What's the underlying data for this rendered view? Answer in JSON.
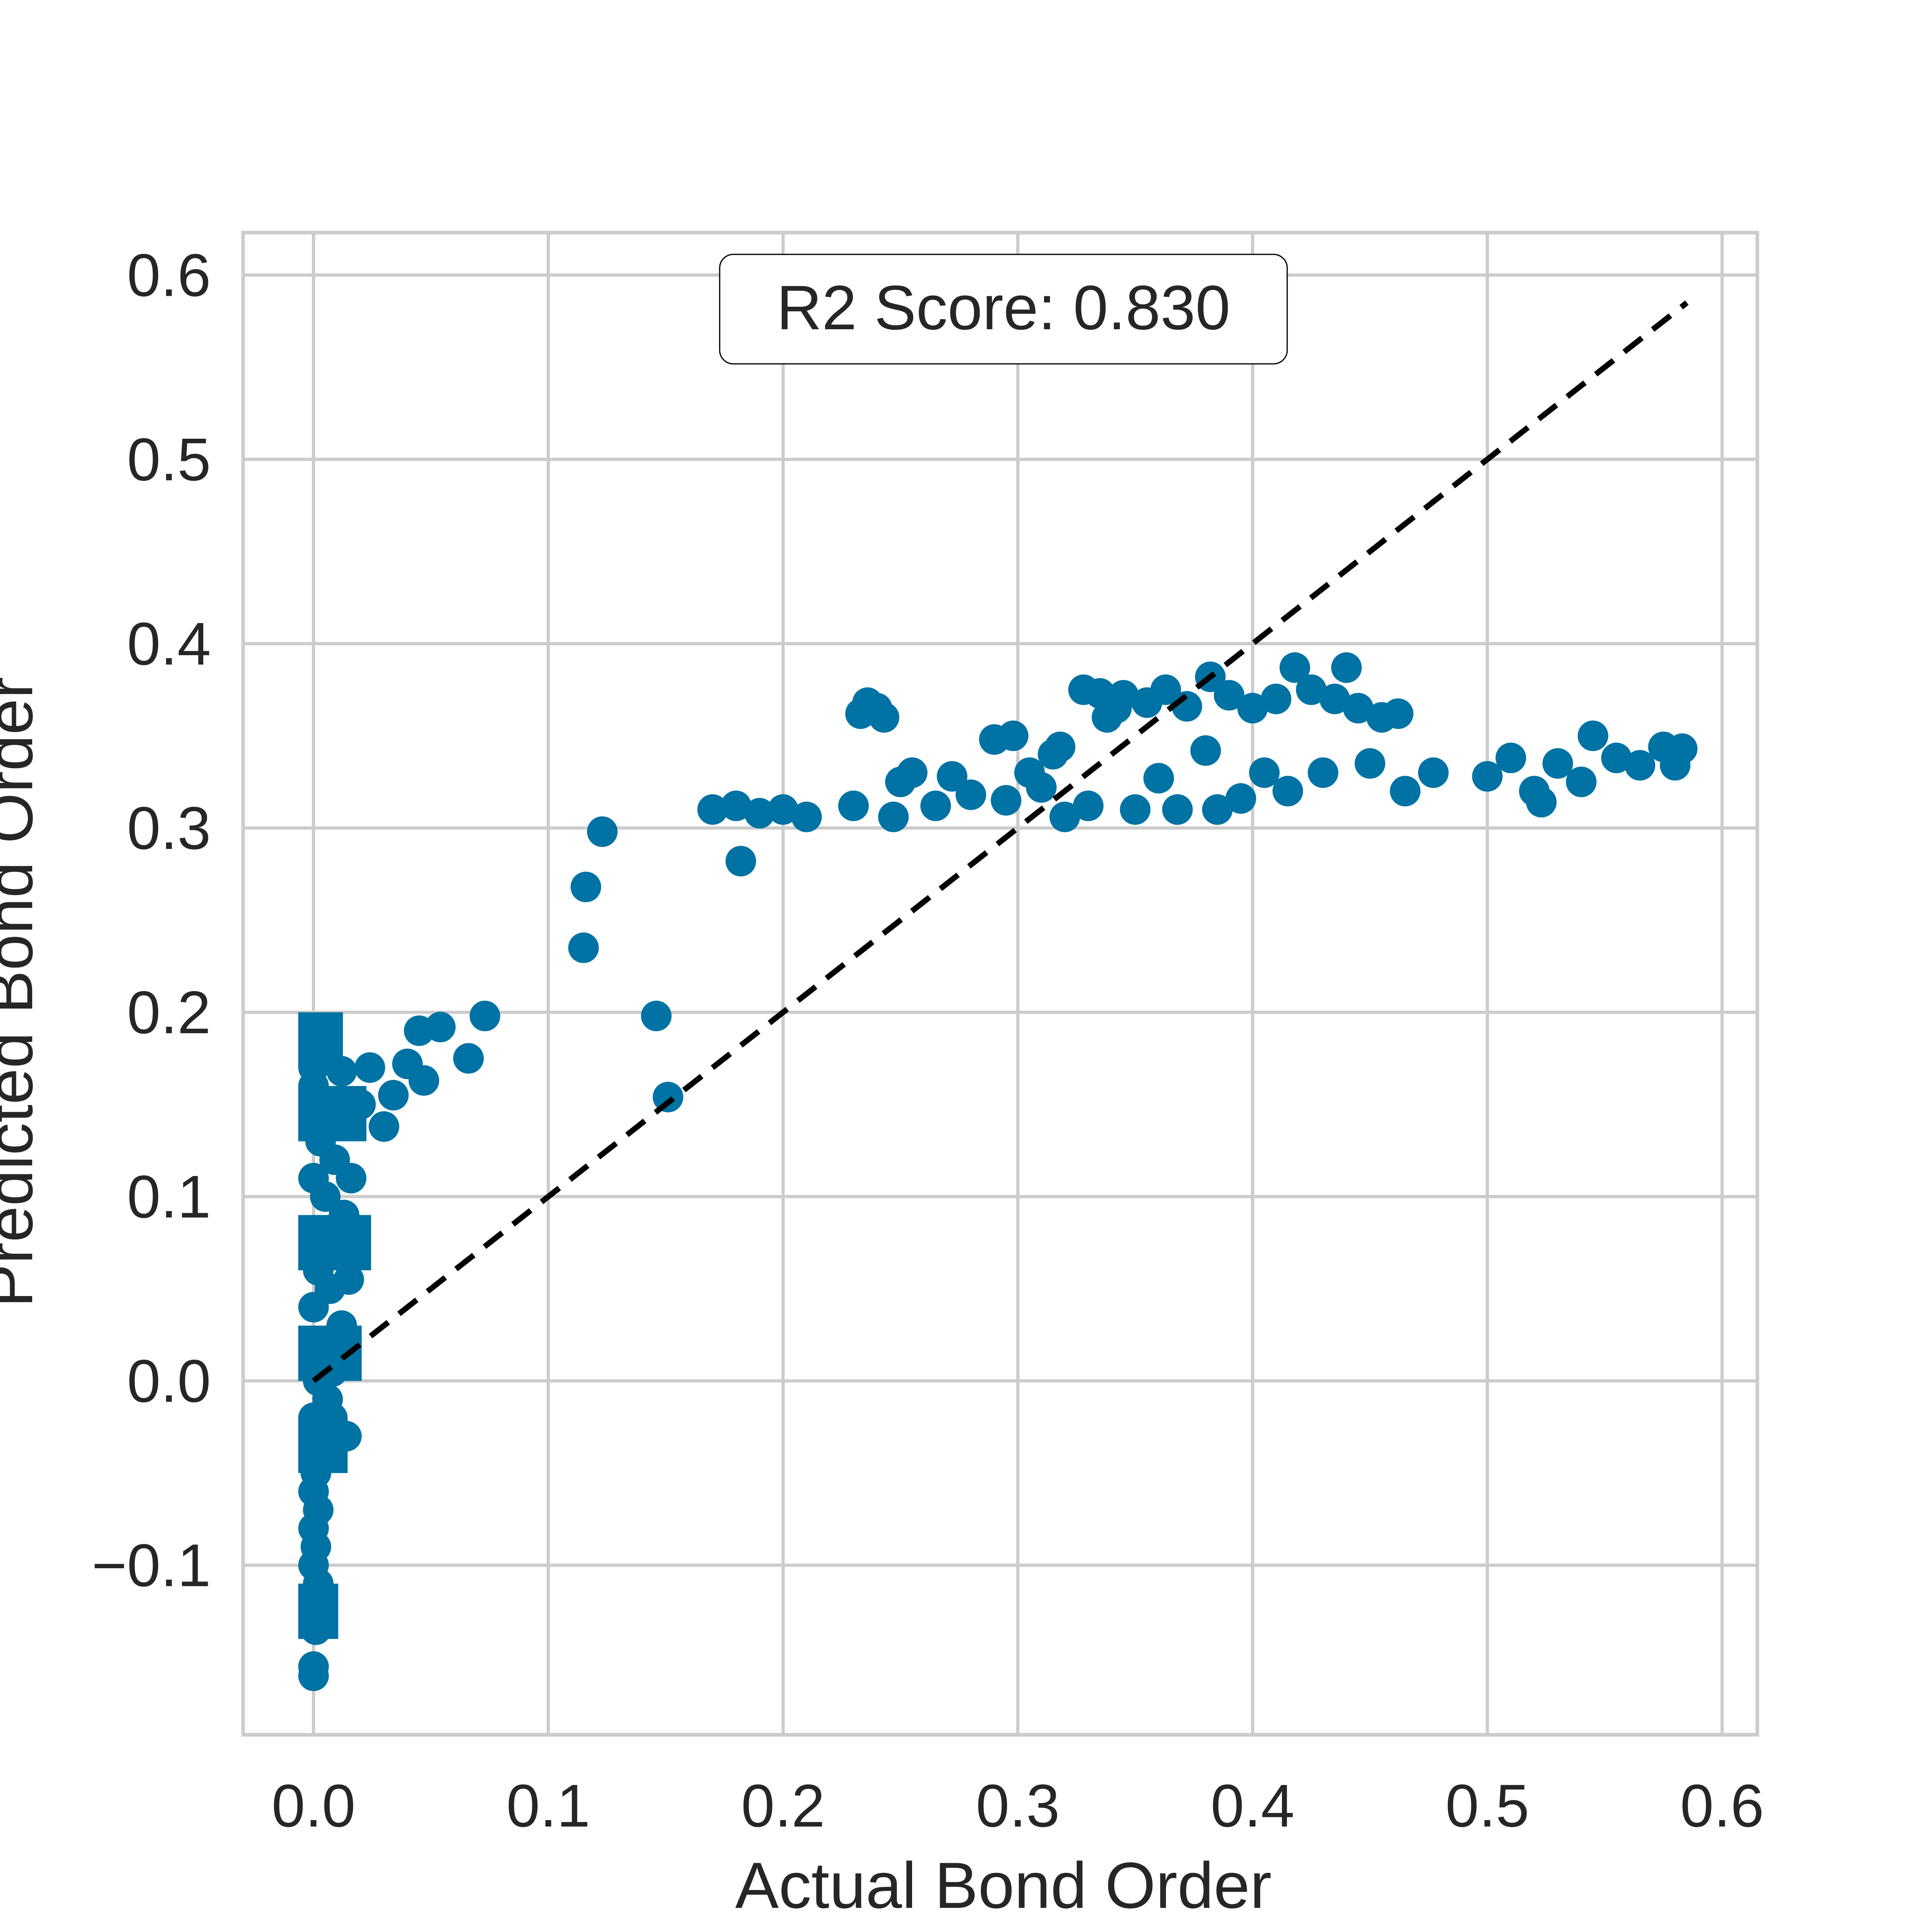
{
  "chart_data": {
    "type": "scatter",
    "xlabel": "Actual Bond Order",
    "ylabel": "Predicted Bond Order",
    "xlim": [
      -0.03,
      0.615
    ],
    "ylim": [
      -0.192,
      0.623
    ],
    "x_ticks": [
      0.0,
      0.1,
      0.2,
      0.3,
      0.4,
      0.5,
      0.6
    ],
    "x_tick_labels": [
      "0.0",
      "0.1",
      "0.2",
      "0.3",
      "0.4",
      "0.5",
      "0.6"
    ],
    "y_ticks": [
      -0.1,
      0.0,
      0.1,
      0.2,
      0.3,
      0.4,
      0.5,
      0.6
    ],
    "y_tick_labels": [
      "−0.1",
      "0.0",
      "0.1",
      "0.2",
      "0.3",
      "0.4",
      "0.5",
      "0.6"
    ],
    "grid": true,
    "annotation": "R2 Score: 0.830",
    "reference_line": {
      "x": [
        0.0,
        0.585
      ],
      "y": [
        0.0,
        0.585
      ],
      "style": "dashed",
      "color": "#000000"
    },
    "series": [
      {
        "color": "#0072a3",
        "points": [
          [
            0.0,
            -0.16
          ],
          [
            0.0,
            -0.155
          ],
          [
            0.001,
            -0.135
          ],
          [
            0.0,
            -0.12
          ],
          [
            0.002,
            -0.11
          ],
          [
            0.0,
            -0.1
          ],
          [
            0.001,
            -0.09
          ],
          [
            0.0,
            -0.08
          ],
          [
            0.002,
            -0.07
          ],
          [
            0.0,
            -0.06
          ],
          [
            0.001,
            -0.05
          ],
          [
            0.0,
            -0.04
          ],
          [
            0.003,
            -0.03
          ],
          [
            0.0,
            -0.02
          ],
          [
            0.006,
            -0.01
          ],
          [
            0.002,
            0.0
          ],
          [
            0.008,
            0.005
          ],
          [
            0.0,
            0.01
          ],
          [
            0.004,
            0.02
          ],
          [
            0.012,
            0.03
          ],
          [
            0.0,
            0.04
          ],
          [
            0.007,
            0.05
          ],
          [
            0.015,
            0.055
          ],
          [
            0.002,
            0.06
          ],
          [
            0.01,
            0.07
          ],
          [
            0.0,
            0.08
          ],
          [
            0.013,
            0.09
          ],
          [
            0.005,
            0.1
          ],
          [
            0.0,
            0.11
          ],
          [
            0.009,
            0.12
          ],
          [
            0.003,
            0.13
          ],
          [
            0.0,
            0.14
          ],
          [
            0.011,
            0.15
          ],
          [
            0.0,
            0.16
          ],
          [
            0.0,
            0.17
          ],
          [
            0.001,
            0.182
          ],
          [
            0.012,
            0.168
          ],
          [
            0.02,
            0.15
          ],
          [
            0.016,
            0.11
          ],
          [
            0.014,
            -0.03
          ],
          [
            0.008,
            -0.02
          ],
          [
            0.004,
            0.075
          ],
          [
            0.024,
            0.17
          ],
          [
            0.03,
            0.138
          ],
          [
            0.034,
            0.155
          ],
          [
            0.04,
            0.172
          ],
          [
            0.045,
            0.19
          ],
          [
            0.047,
            0.163
          ],
          [
            0.054,
            0.192
          ],
          [
            0.066,
            0.175
          ],
          [
            0.073,
            0.198
          ],
          [
            0.115,
            0.235
          ],
          [
            0.116,
            0.268
          ],
          [
            0.123,
            0.298
          ],
          [
            0.146,
            0.198
          ],
          [
            0.151,
            0.154
          ],
          [
            0.17,
            0.31
          ],
          [
            0.18,
            0.312
          ],
          [
            0.182,
            0.282
          ],
          [
            0.19,
            0.308
          ],
          [
            0.2,
            0.31
          ],
          [
            0.21,
            0.306
          ],
          [
            0.23,
            0.312
          ],
          [
            0.233,
            0.362
          ],
          [
            0.236,
            0.368
          ],
          [
            0.24,
            0.365
          ],
          [
            0.243,
            0.36
          ],
          [
            0.247,
            0.306
          ],
          [
            0.25,
            0.325
          ],
          [
            0.255,
            0.33
          ],
          [
            0.265,
            0.312
          ],
          [
            0.272,
            0.328
          ],
          [
            0.28,
            0.318
          ],
          [
            0.29,
            0.348
          ],
          [
            0.295,
            0.315
          ],
          [
            0.298,
            0.35
          ],
          [
            0.305,
            0.33
          ],
          [
            0.31,
            0.322
          ],
          [
            0.315,
            0.34
          ],
          [
            0.318,
            0.344
          ],
          [
            0.32,
            0.306
          ],
          [
            0.328,
            0.375
          ],
          [
            0.33,
            0.312
          ],
          [
            0.335,
            0.373
          ],
          [
            0.338,
            0.36
          ],
          [
            0.342,
            0.365
          ],
          [
            0.345,
            0.372
          ],
          [
            0.35,
            0.31
          ],
          [
            0.355,
            0.368
          ],
          [
            0.36,
            0.327
          ],
          [
            0.363,
            0.375
          ],
          [
            0.368,
            0.31
          ],
          [
            0.372,
            0.366
          ],
          [
            0.38,
            0.342
          ],
          [
            0.382,
            0.382
          ],
          [
            0.385,
            0.31
          ],
          [
            0.39,
            0.372
          ],
          [
            0.395,
            0.316
          ],
          [
            0.4,
            0.365
          ],
          [
            0.405,
            0.33
          ],
          [
            0.41,
            0.37
          ],
          [
            0.415,
            0.32
          ],
          [
            0.418,
            0.387
          ],
          [
            0.425,
            0.375
          ],
          [
            0.43,
            0.33
          ],
          [
            0.435,
            0.37
          ],
          [
            0.44,
            0.387
          ],
          [
            0.445,
            0.365
          ],
          [
            0.45,
            0.335
          ],
          [
            0.455,
            0.36
          ],
          [
            0.462,
            0.362
          ],
          [
            0.465,
            0.32
          ],
          [
            0.477,
            0.33
          ],
          [
            0.5,
            0.328
          ],
          [
            0.51,
            0.338
          ],
          [
            0.52,
            0.32
          ],
          [
            0.523,
            0.314
          ],
          [
            0.53,
            0.335
          ],
          [
            0.54,
            0.325
          ],
          [
            0.545,
            0.35
          ],
          [
            0.555,
            0.338
          ],
          [
            0.565,
            0.334
          ],
          [
            0.575,
            0.344
          ],
          [
            0.58,
            0.334
          ],
          [
            0.583,
            0.343
          ]
        ]
      }
    ]
  }
}
